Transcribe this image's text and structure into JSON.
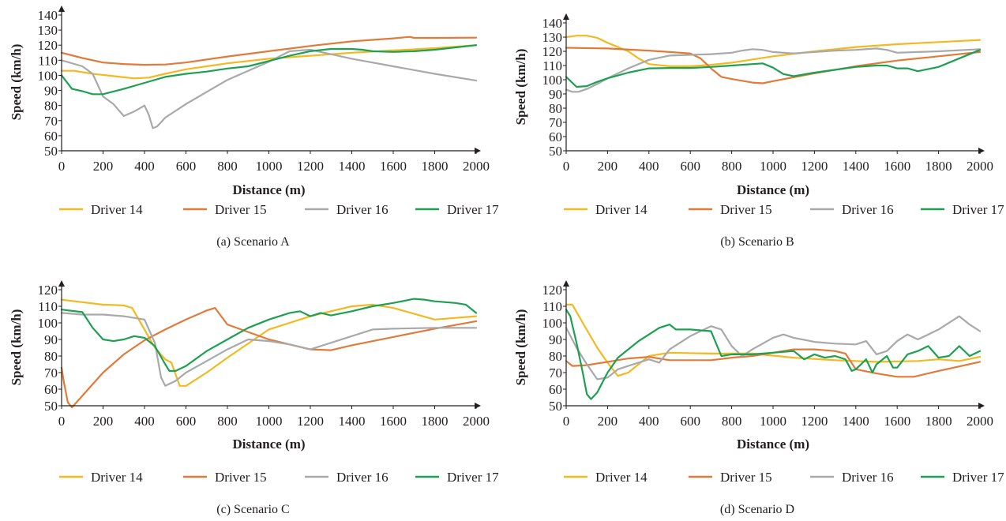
{
  "colors": {
    "Driver 14": "#f3b921",
    "Driver 15": "#e07b39",
    "Driver 16": "#a8a9ab",
    "Driver 17": "#1ea052"
  },
  "chart_data": [
    {
      "id": "a",
      "type": "line",
      "caption": "(a)  Scenario A",
      "xlabel": "Distance (m)",
      "ylabel": "Speed (km/h)",
      "xlim": [
        0,
        2000
      ],
      "ylim": [
        50,
        140
      ],
      "xticks": [
        0,
        200,
        400,
        600,
        800,
        1000,
        1200,
        1400,
        1600,
        1800,
        2000
      ],
      "yticks": [
        50,
        60,
        70,
        80,
        90,
        100,
        110,
        120,
        130,
        140
      ],
      "grid": false,
      "legend": "bottom",
      "series": [
        {
          "name": "Driver 14",
          "x": [
            0,
            60,
            150,
            250,
            350,
            420,
            500,
            600,
            800,
            1000,
            1200,
            1400,
            1600,
            1800,
            2000
          ],
          "y": [
            103,
            103,
            101,
            99.5,
            98,
            98.5,
            101,
            104,
            108,
            111,
            113,
            115,
            116.5,
            118,
            120
          ]
        },
        {
          "name": "Driver 15",
          "x": [
            0,
            100,
            200,
            300,
            400,
            500,
            600,
            800,
            1000,
            1200,
            1400,
            1600,
            1680,
            1700,
            1800,
            2000
          ],
          "y": [
            115,
            111.5,
            108.5,
            107.5,
            107,
            107.2,
            108.5,
            112.5,
            116,
            119.5,
            122.5,
            124.5,
            125.5,
            124.8,
            124.8,
            125
          ]
        },
        {
          "name": "Driver 16",
          "x": [
            0,
            100,
            150,
            200,
            250,
            300,
            350,
            400,
            420,
            440,
            460,
            500,
            600,
            800,
            1000,
            1100,
            1200,
            1300,
            1400,
            1600,
            1800,
            2000
          ],
          "y": [
            110,
            106,
            101,
            86,
            81,
            73,
            76,
            80,
            74,
            65,
            66,
            72,
            81,
            97,
            109,
            116,
            117,
            114,
            111,
            106,
            101,
            96.5
          ]
        },
        {
          "name": "Driver 17",
          "x": [
            0,
            50,
            100,
            150,
            200,
            300,
            400,
            500,
            600,
            700,
            800,
            900,
            1000,
            1100,
            1200,
            1300,
            1400,
            1450,
            1500,
            1600,
            1700,
            1800,
            2000
          ],
          "y": [
            100,
            91,
            89.5,
            87.5,
            87.5,
            91,
            95,
            99,
            101,
            102.5,
            104.5,
            106,
            109.5,
            113,
            116,
            117.5,
            117.5,
            117,
            116,
            115.5,
            116,
            117,
            120
          ]
        }
      ]
    },
    {
      "id": "b",
      "type": "line",
      "caption": "(b)  Scenario B",
      "xlabel": "Distance (m)",
      "ylabel": "Speed (km/h)",
      "xlim": [
        0,
        2000
      ],
      "ylim": [
        50,
        140
      ],
      "xticks": [
        0,
        200,
        400,
        600,
        800,
        1000,
        1200,
        1400,
        1600,
        1800,
        2000
      ],
      "yticks": [
        50,
        60,
        70,
        80,
        90,
        100,
        110,
        120,
        130,
        140
      ],
      "grid": false,
      "legend": "bottom",
      "series": [
        {
          "name": "Driver 14",
          "x": [
            0,
            50,
            100,
            150,
            200,
            300,
            350,
            400,
            500,
            600,
            700,
            800,
            1000,
            1200,
            1400,
            1600,
            1800,
            2000
          ],
          "y": [
            130,
            131,
            131,
            129.5,
            126,
            120,
            115,
            111,
            109.5,
            109.5,
            110.5,
            112,
            116.5,
            120,
            123,
            125,
            126.5,
            128
          ]
        },
        {
          "name": "Driver 15",
          "x": [
            0,
            200,
            400,
            500,
            600,
            650,
            700,
            750,
            800,
            900,
            950,
            1000,
            1200,
            1400,
            1600,
            1800,
            2000
          ],
          "y": [
            122.5,
            122,
            120.5,
            119.5,
            118.5,
            115,
            108,
            102,
            100.5,
            98,
            97.5,
            99,
            104.5,
            109.5,
            113.5,
            116.5,
            119.5
          ]
        },
        {
          "name": "Driver 16",
          "x": [
            0,
            30,
            60,
            100,
            150,
            200,
            300,
            400,
            500,
            600,
            700,
            800,
            850,
            900,
            950,
            1000,
            1100,
            1200,
            1300,
            1400,
            1500,
            1550,
            1600,
            1700,
            1800,
            2000
          ],
          "y": [
            93,
            91.5,
            91.5,
            93.5,
            97,
            101,
            108,
            114,
            117,
            117.5,
            118,
            119,
            120.5,
            121.5,
            121,
            119.5,
            118.5,
            119.5,
            120.5,
            121,
            122,
            121,
            119,
            119.5,
            120,
            121.5
          ]
        },
        {
          "name": "Driver 17",
          "x": [
            0,
            50,
            100,
            150,
            200,
            300,
            400,
            500,
            600,
            700,
            800,
            900,
            950,
            1000,
            1050,
            1100,
            1200,
            1300,
            1400,
            1500,
            1550,
            1600,
            1650,
            1700,
            1800,
            2000
          ],
          "y": [
            102,
            95,
            95.5,
            98.5,
            101,
            105,
            108,
            108.3,
            108.3,
            109,
            110,
            111,
            111.5,
            108.5,
            104,
            102.5,
            105,
            107,
            109,
            110,
            110,
            108,
            108,
            106,
            109,
            121
          ]
        }
      ]
    },
    {
      "id": "c",
      "type": "line",
      "caption": "(c)  Scenario C",
      "xlabel": "Distance (m)",
      "ylabel": "Speed (km/h)",
      "xlim": [
        0,
        2000
      ],
      "ylim": [
        50,
        120
      ],
      "xticks": [
        0,
        200,
        400,
        600,
        800,
        1000,
        1200,
        1400,
        1600,
        1800,
        2000
      ],
      "yticks": [
        50,
        60,
        70,
        80,
        90,
        100,
        110,
        120
      ],
      "grid": false,
      "legend": "bottom",
      "series": [
        {
          "name": "Driver 14",
          "x": [
            0,
            100,
            200,
            300,
            340,
            400,
            450,
            500,
            530,
            570,
            600,
            700,
            800,
            1000,
            1200,
            1400,
            1500,
            1600,
            1800,
            2000
          ],
          "y": [
            114,
            112.5,
            111,
            110.5,
            109,
            96,
            85,
            78,
            76,
            62,
            62,
            70,
            79,
            96,
            104,
            110,
            111,
            109,
            102,
            104
          ]
        },
        {
          "name": "Driver 15",
          "x": [
            0,
            10,
            30,
            50,
            100,
            200,
            300,
            400,
            500,
            600,
            700,
            740,
            800,
            1000,
            1200,
            1300,
            1400,
            1600,
            1800,
            2000
          ],
          "y": [
            73,
            65,
            52,
            49,
            56,
            70,
            81,
            89.5,
            96,
            102,
            107.5,
            109,
            99,
            90,
            84,
            83.5,
            86.5,
            91.5,
            96.5,
            101
          ]
        },
        {
          "name": "Driver 16",
          "x": [
            0,
            100,
            200,
            300,
            400,
            450,
            480,
            500,
            550,
            600,
            700,
            800,
            900,
            1000,
            1100,
            1200,
            1300,
            1400,
            1500,
            1600,
            1800,
            2000
          ],
          "y": [
            106,
            105,
            105,
            104,
            102,
            88,
            67,
            62,
            65,
            70,
            77,
            84,
            90,
            89,
            87,
            84,
            88,
            92,
            96,
            96.5,
            97,
            97
          ]
        },
        {
          "name": "Driver 17",
          "x": [
            0,
            100,
            150,
            200,
            250,
            300,
            350,
            400,
            450,
            500,
            520,
            550,
            600,
            700,
            800,
            900,
            1000,
            1100,
            1150,
            1200,
            1250,
            1300,
            1400,
            1500,
            1600,
            1700,
            1750,
            1800,
            1900,
            1950,
            2000
          ],
          "y": [
            108,
            106.5,
            97,
            90,
            89,
            90,
            92,
            91,
            86,
            75,
            71,
            71,
            74,
            83,
            90,
            97,
            102,
            106,
            107,
            104,
            106,
            104.5,
            107,
            110,
            112,
            114.5,
            114,
            113,
            112,
            111,
            106
          ]
        }
      ]
    },
    {
      "id": "d",
      "type": "line",
      "caption": "(d)  Scenario D",
      "xlabel": "Distance (m)",
      "ylabel": "Speed (km/h)",
      "xlim": [
        0,
        2000
      ],
      "ylim": [
        50,
        120
      ],
      "xticks": [
        0,
        200,
        400,
        600,
        800,
        1000,
        1200,
        1400,
        1600,
        1800,
        2000
      ],
      "yticks": [
        50,
        60,
        70,
        80,
        90,
        100,
        110,
        120
      ],
      "grid": false,
      "legend": "bottom",
      "series": [
        {
          "name": "Driver 14",
          "x": [
            0,
            30,
            80,
            150,
            200,
            250,
            300,
            400,
            500,
            700,
            900,
            1100,
            1300,
            1500,
            1700,
            1800,
            1900,
            2000
          ],
          "y": [
            111,
            111,
            100,
            85,
            76,
            68,
            70,
            80,
            82,
            81.5,
            81.5,
            79,
            77.5,
            76.5,
            77,
            78,
            77,
            79.5
          ]
        },
        {
          "name": "Driver 15",
          "x": [
            0,
            30,
            100,
            200,
            300,
            400,
            500,
            600,
            700,
            800,
            900,
            1000,
            1100,
            1200,
            1300,
            1350,
            1400,
            1500,
            1600,
            1680,
            1800,
            2000
          ],
          "y": [
            77,
            74,
            74.5,
            76.5,
            78.5,
            79.5,
            77.5,
            77.5,
            77.5,
            79,
            80,
            82,
            84,
            84,
            83,
            81.5,
            72,
            69.5,
            67.5,
            67.5,
            71,
            76.5
          ]
        },
        {
          "name": "Driver 16",
          "x": [
            0,
            50,
            100,
            150,
            200,
            250,
            300,
            400,
            450,
            500,
            550,
            600,
            700,
            750,
            800,
            850,
            900,
            1000,
            1050,
            1100,
            1200,
            1300,
            1400,
            1450,
            1500,
            1550,
            1600,
            1650,
            1700,
            1750,
            1800,
            1900,
            1950,
            2000
          ],
          "y": [
            97,
            85,
            75,
            66,
            67,
            72,
            74,
            78,
            76,
            84,
            88,
            92,
            98,
            96,
            86,
            80,
            84,
            91,
            93,
            91,
            88.5,
            87.5,
            87,
            89,
            81,
            83,
            89,
            93,
            90,
            93,
            96,
            104,
            99,
            95
          ]
        },
        {
          "name": "Driver 17",
          "x": [
            0,
            20,
            50,
            80,
            100,
            120,
            150,
            200,
            250,
            300,
            350,
            400,
            450,
            500,
            530,
            600,
            700,
            750,
            800,
            900,
            1000,
            1100,
            1150,
            1200,
            1250,
            1300,
            1350,
            1380,
            1400,
            1450,
            1480,
            1500,
            1550,
            1580,
            1600,
            1650,
            1700,
            1750,
            1800,
            1850,
            1900,
            1950,
            2000
          ],
          "y": [
            108,
            104,
            88,
            70,
            57,
            54,
            58,
            70,
            79,
            84,
            89,
            93,
            97,
            99,
            96,
            96,
            95,
            80,
            81,
            81,
            82,
            83,
            78,
            81,
            79,
            80,
            78,
            71,
            72,
            78,
            70,
            75,
            80,
            73,
            73,
            81,
            83,
            86,
            79,
            80,
            86,
            80,
            83
          ]
        }
      ]
    }
  ]
}
